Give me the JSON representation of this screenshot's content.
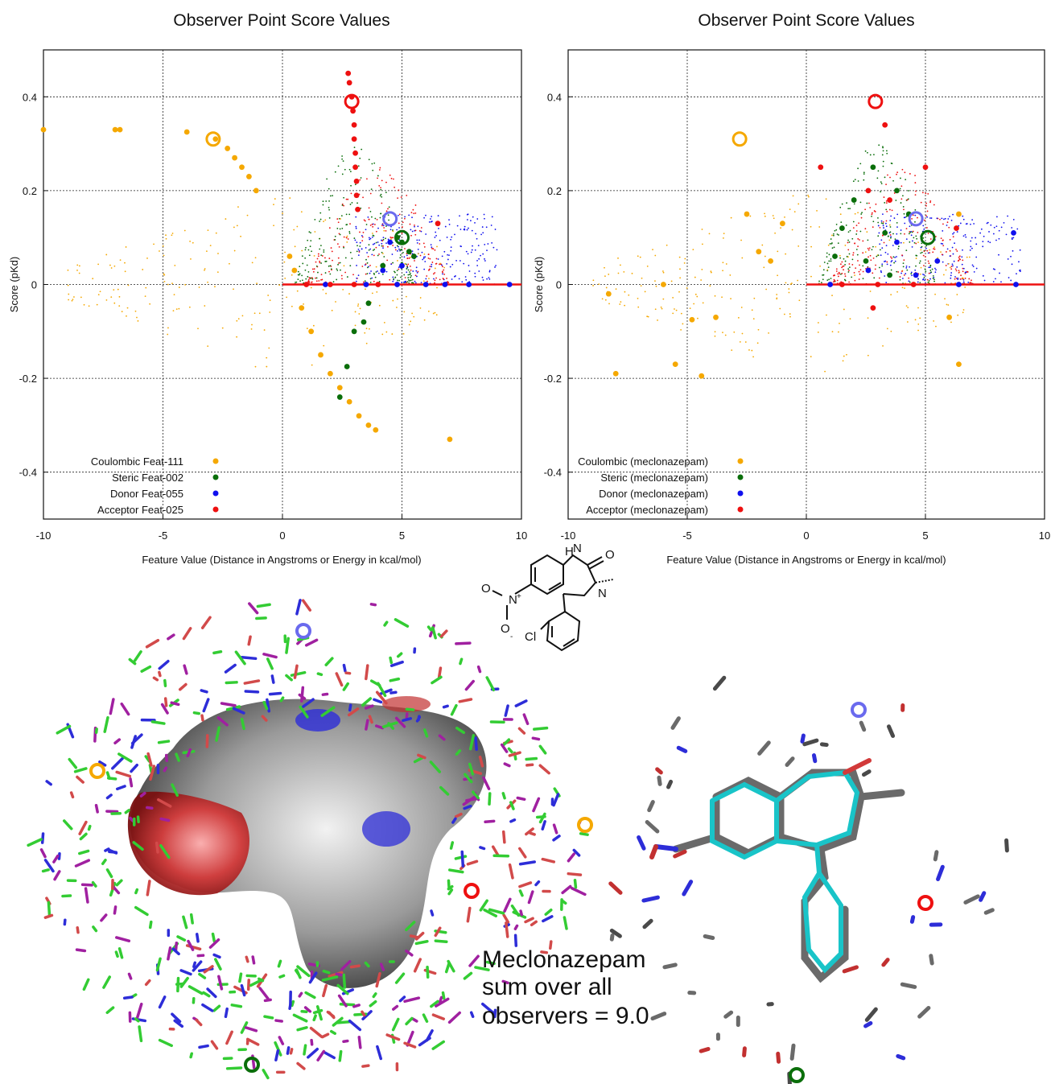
{
  "chart_data": [
    {
      "type": "scatter",
      "title": "Observer Point Score Values",
      "xlabel": "Feature Value (Distance in Angstroms or Energy in kcal/mol)",
      "ylabel": "Score (pKd)",
      "xlim": [
        -10,
        10
      ],
      "ylim": [
        -0.5,
        0.5
      ],
      "xticks": [
        -10,
        -5,
        0,
        5,
        10
      ],
      "yticks": [
        -0.4,
        -0.2,
        0,
        0.2,
        0.4
      ],
      "grid": true,
      "legend_position": "bottom-left",
      "series": [
        {
          "name": "Coulombic Feat-111",
          "color": "#f5a800",
          "points": [
            [
              -10,
              0.33
            ],
            [
              -7.0,
              0.33
            ],
            [
              -6.8,
              0.33
            ],
            [
              -4.0,
              0.325
            ],
            [
              -2.8,
              0.31
            ],
            [
              -2.3,
              0.29
            ],
            [
              -2.0,
              0.27
            ],
            [
              -1.7,
              0.25
            ],
            [
              -1.4,
              0.23
            ],
            [
              -1.1,
              0.2
            ],
            [
              0.8,
              -0.05
            ],
            [
              1.2,
              -0.1
            ],
            [
              1.6,
              -0.15
            ],
            [
              2.0,
              -0.19
            ],
            [
              2.4,
              -0.22
            ],
            [
              2.8,
              -0.25
            ],
            [
              3.2,
              -0.28
            ],
            [
              3.6,
              -0.3
            ],
            [
              3.9,
              -0.31
            ],
            [
              7.0,
              -0.33
            ],
            [
              0.5,
              0.03
            ],
            [
              0.3,
              0.06
            ]
          ],
          "highlight": [
            -2.9,
            0.31
          ]
        },
        {
          "name": "Steric Feat-002",
          "color": "#0a6e0a",
          "points": [
            [
              3.6,
              -0.04
            ],
            [
              3.4,
              -0.08
            ],
            [
              3.0,
              -0.1
            ],
            [
              2.7,
              -0.175
            ],
            [
              2.4,
              -0.24
            ],
            [
              4.8,
              0.1
            ],
            [
              5.0,
              0.09
            ],
            [
              5.3,
              0.07
            ],
            [
              5.5,
              0.06
            ],
            [
              4.2,
              0.04
            ]
          ],
          "highlight": [
            5.0,
            0.1
          ]
        },
        {
          "name": "Donor Feat-055",
          "color": "#1010ee",
          "points": [
            [
              1.8,
              0.0
            ],
            [
              3.5,
              0.0
            ],
            [
              4.2,
              0.03
            ],
            [
              4.5,
              0.09
            ],
            [
              5.0,
              0.04
            ],
            [
              6.0,
              0.0
            ],
            [
              6.8,
              0.0
            ],
            [
              7.8,
              0.0
            ],
            [
              9.5,
              0.0
            ],
            [
              4.8,
              0.0
            ]
          ],
          "highlight": [
            4.5,
            0.14
          ]
        },
        {
          "name": "Acceptor Feat-025",
          "color": "#ee1010",
          "points": [
            [
              2.75,
              0.45
            ],
            [
              2.8,
              0.43
            ],
            [
              2.9,
              0.4
            ],
            [
              2.95,
              0.37
            ],
            [
              3.0,
              0.34
            ],
            [
              3.0,
              0.31
            ],
            [
              3.05,
              0.28
            ],
            [
              3.05,
              0.25
            ],
            [
              3.1,
              0.22
            ],
            [
              3.1,
              0.19
            ],
            [
              3.15,
              0.16
            ],
            [
              1.0,
              0.0
            ],
            [
              2.0,
              0.0
            ],
            [
              3.0,
              0.0
            ],
            [
              4.0,
              0.0
            ],
            [
              6.5,
              0.13
            ]
          ],
          "highlight": [
            2.9,
            0.39
          ]
        }
      ]
    },
    {
      "type": "scatter",
      "title": "Observer Point Score Values",
      "xlabel": "Feature Value (Distance in Angstroms or Energy in kcal/mol)",
      "ylabel": "Score (pKd)",
      "xlim": [
        -10,
        10
      ],
      "ylim": [
        -0.5,
        0.5
      ],
      "xticks": [
        -10,
        -5,
        0,
        5,
        10
      ],
      "yticks": [
        -0.4,
        -0.2,
        0,
        0.2,
        0.4
      ],
      "grid": true,
      "legend_position": "bottom-left",
      "series": [
        {
          "name": "Coulombic (meclonazepam)",
          "color": "#f5a800",
          "points": [
            [
              -8.0,
              -0.19
            ],
            [
              -5.5,
              -0.17
            ],
            [
              -4.4,
              -0.195
            ],
            [
              -4.8,
              -0.075
            ],
            [
              -3.8,
              -0.07
            ],
            [
              -2.5,
              0.15
            ],
            [
              -1.0,
              0.13
            ],
            [
              -1.5,
              0.05
            ],
            [
              -2.0,
              0.07
            ],
            [
              -6.0,
              0.0
            ],
            [
              6.4,
              -0.17
            ],
            [
              6.0,
              -0.07
            ],
            [
              -8.3,
              -0.02
            ],
            [
              6.4,
              0.15
            ]
          ],
          "highlight": [
            -2.8,
            0.31
          ]
        },
        {
          "name": "Steric (meclonazepam)",
          "color": "#0a6e0a",
          "points": [
            [
              2.8,
              0.25
            ],
            [
              2.0,
              0.18
            ],
            [
              1.5,
              0.12
            ],
            [
              3.3,
              0.11
            ],
            [
              3.8,
              0.2
            ],
            [
              4.3,
              0.15
            ],
            [
              2.5,
              0.05
            ],
            [
              1.2,
              0.06
            ],
            [
              3.5,
              0.02
            ]
          ],
          "highlight": [
            5.1,
            0.1
          ]
        },
        {
          "name": "Donor (meclonazepam)",
          "color": "#1010ee",
          "points": [
            [
              1.0,
              0.0
            ],
            [
              2.6,
              0.03
            ],
            [
              4.6,
              0.02
            ],
            [
              5.5,
              0.05
            ],
            [
              6.4,
              0.0
            ],
            [
              8.8,
              0.0
            ],
            [
              8.7,
              0.11
            ],
            [
              3.8,
              0.09
            ]
          ],
          "highlight": [
            4.6,
            0.14
          ]
        },
        {
          "name": "Acceptor (meclonazepam)",
          "color": "#ee1010",
          "points": [
            [
              3.3,
              0.34
            ],
            [
              0.6,
              0.25
            ],
            [
              5.0,
              0.25
            ],
            [
              3.5,
              0.18
            ],
            [
              2.6,
              0.2
            ],
            [
              6.3,
              0.12
            ],
            [
              2.8,
              -0.05
            ],
            [
              1.5,
              0.0
            ],
            [
              3.0,
              0.0
            ],
            [
              4.5,
              0.0
            ]
          ],
          "highlight": [
            2.9,
            0.39
          ]
        }
      ]
    }
  ],
  "scene": {
    "caption_lines": [
      "Meclonazepam",
      "sum over all",
      "observers = 9.0"
    ],
    "molecule_labels": {
      "nh": "H",
      "n": "N",
      "o_carbonyl": "O",
      "n_imine": "N",
      "nitro_n": "N",
      "nitro_o1": "O",
      "nitro_o2": "O",
      "cl": "Cl",
      "plus": "+",
      "minus": "-"
    },
    "colors": {
      "surface": "#8a8a8a",
      "positive": "#d23a3a",
      "negative": "#2d2dd8",
      "stick_cyan": "#19c4c8",
      "stick_grey": "#6a6a6a"
    }
  }
}
